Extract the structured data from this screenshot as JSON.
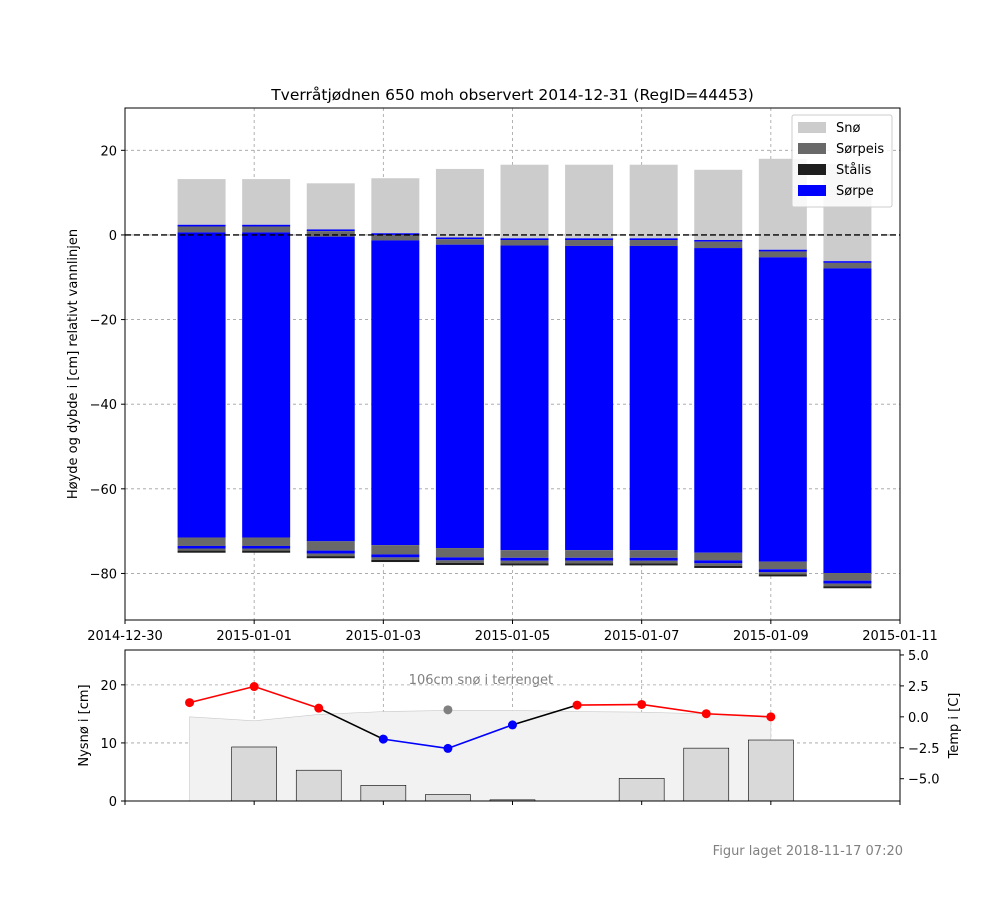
{
  "chart_data": [
    {
      "type": "bar",
      "subtype": "stacked-layers",
      "title": "Tverråtjødnen 650 moh observert 2014-12-31 (RegID=44453)",
      "ylabel": "Høyde og dybde i [cm] relativt vannlinjen",
      "xlim": [
        "2014-12-30",
        "2015-01-11"
      ],
      "ylim": [
        -91,
        30
      ],
      "xticks": [
        "2014-12-30",
        "2015-01-01",
        "2015-01-03",
        "2015-01-05",
        "2015-01-07",
        "2015-01-09",
        "2015-01-11"
      ],
      "yticks": [
        20,
        0,
        -20,
        -40,
        -60,
        -80
      ],
      "grid": true,
      "legend_placement": "top-right",
      "reference_line": {
        "y": 0,
        "style": "dashed",
        "color": "#000000"
      },
      "legend": [
        {
          "label": "Snø",
          "color": "#cccccc"
        },
        {
          "label": "Sørpeis",
          "color": "#696969"
        },
        {
          "label": "Stålis",
          "color": "#1e1e1e"
        },
        {
          "label": "Sørpe",
          "color": "#0000ff"
        }
      ],
      "columns": [
        {
          "date": "2014-12-31",
          "layers": [
            {
              "type": "Snø",
              "top": 13.2,
              "bottom": 2.4
            },
            {
              "type": "Sørpe",
              "top": 2.4,
              "bottom": 2.0
            },
            {
              "type": "Sørpeis",
              "top": 2.0,
              "bottom": 0.6
            },
            {
              "type": "Sørpe",
              "top": 0.6,
              "bottom": -71.5
            },
            {
              "type": "Sørpeis",
              "top": -71.5,
              "bottom": -73.5
            },
            {
              "type": "Sørpe",
              "top": -73.5,
              "bottom": -74.1
            },
            {
              "type": "Sørpeis",
              "top": -74.1,
              "bottom": -74.6
            },
            {
              "type": "Stålis",
              "top": -74.6,
              "bottom": -75.1
            }
          ]
        },
        {
          "date": "2015-01-01",
          "layers": [
            {
              "type": "Snø",
              "top": 13.2,
              "bottom": 2.4
            },
            {
              "type": "Sørpe",
              "top": 2.4,
              "bottom": 2.0
            },
            {
              "type": "Sørpeis",
              "top": 2.0,
              "bottom": 0.6
            },
            {
              "type": "Sørpe",
              "top": 0.6,
              "bottom": -71.5
            },
            {
              "type": "Sørpeis",
              "top": -71.5,
              "bottom": -73.5
            },
            {
              "type": "Sørpe",
              "top": -73.5,
              "bottom": -74.1
            },
            {
              "type": "Sørpeis",
              "top": -74.1,
              "bottom": -74.6
            },
            {
              "type": "Stålis",
              "top": -74.6,
              "bottom": -75.1
            }
          ]
        },
        {
          "date": "2015-01-02",
          "layers": [
            {
              "type": "Snø",
              "top": 12.2,
              "bottom": 1.3
            },
            {
              "type": "Sørpe",
              "top": 1.3,
              "bottom": 0.9
            },
            {
              "type": "Sørpeis",
              "top": 0.9,
              "bottom": -0.4
            },
            {
              "type": "Sørpe",
              "top": -0.4,
              "bottom": -72.4
            },
            {
              "type": "Sørpeis",
              "top": -72.4,
              "bottom": -74.6
            },
            {
              "type": "Sørpe",
              "top": -74.6,
              "bottom": -75.3
            },
            {
              "type": "Sørpeis",
              "top": -75.3,
              "bottom": -75.9
            },
            {
              "type": "Stålis",
              "top": -75.9,
              "bottom": -76.4
            }
          ]
        },
        {
          "date": "2015-01-03",
          "layers": [
            {
              "type": "Snø",
              "top": 13.4,
              "bottom": 0.4
            },
            {
              "type": "Sørpe",
              "top": 0.4,
              "bottom": 0.0
            },
            {
              "type": "Sørpeis",
              "top": 0.0,
              "bottom": -1.3
            },
            {
              "type": "Sørpe",
              "top": -1.3,
              "bottom": -73.3
            },
            {
              "type": "Sørpeis",
              "top": -73.3,
              "bottom": -75.5
            },
            {
              "type": "Sørpe",
              "top": -75.5,
              "bottom": -76.2
            },
            {
              "type": "Sørpeis",
              "top": -76.2,
              "bottom": -76.8
            },
            {
              "type": "Stålis",
              "top": -76.8,
              "bottom": -77.3
            }
          ]
        },
        {
          "date": "2015-01-04",
          "layers": [
            {
              "type": "Snø",
              "top": 15.6,
              "bottom": -0.6
            },
            {
              "type": "Sørpe",
              "top": -0.6,
              "bottom": -1.0
            },
            {
              "type": "Sørpeis",
              "top": -1.0,
              "bottom": -2.3
            },
            {
              "type": "Sørpe",
              "top": -2.3,
              "bottom": -74.0
            },
            {
              "type": "Sørpeis",
              "top": -74.0,
              "bottom": -76.2
            },
            {
              "type": "Sørpe",
              "top": -76.2,
              "bottom": -76.9
            },
            {
              "type": "Sørpeis",
              "top": -76.9,
              "bottom": -77.5
            },
            {
              "type": "Stålis",
              "top": -77.5,
              "bottom": -78.0
            }
          ]
        },
        {
          "date": "2015-01-05",
          "layers": [
            {
              "type": "Snø",
              "top": 16.6,
              "bottom": -0.8
            },
            {
              "type": "Sørpe",
              "top": -0.8,
              "bottom": -1.2
            },
            {
              "type": "Sørpeis",
              "top": -1.2,
              "bottom": -2.5
            },
            {
              "type": "Sørpe",
              "top": -2.5,
              "bottom": -74.5
            },
            {
              "type": "Sørpeis",
              "top": -74.5,
              "bottom": -76.3
            },
            {
              "type": "Sørpe",
              "top": -76.3,
              "bottom": -77.0
            },
            {
              "type": "Sørpeis",
              "top": -77.0,
              "bottom": -77.6
            },
            {
              "type": "Stålis",
              "top": -77.6,
              "bottom": -78.1
            }
          ]
        },
        {
          "date": "2015-01-06",
          "layers": [
            {
              "type": "Snø",
              "top": 16.6,
              "bottom": -0.8
            },
            {
              "type": "Sørpe",
              "top": -0.8,
              "bottom": -1.2
            },
            {
              "type": "Sørpeis",
              "top": -1.2,
              "bottom": -2.6
            },
            {
              "type": "Sørpe",
              "top": -2.6,
              "bottom": -74.5
            },
            {
              "type": "Sørpeis",
              "top": -74.5,
              "bottom": -76.3
            },
            {
              "type": "Sørpe",
              "top": -76.3,
              "bottom": -77.0
            },
            {
              "type": "Sørpeis",
              "top": -77.0,
              "bottom": -77.6
            },
            {
              "type": "Stålis",
              "top": -77.6,
              "bottom": -78.1
            }
          ]
        },
        {
          "date": "2015-01-07",
          "layers": [
            {
              "type": "Snø",
              "top": 16.6,
              "bottom": -0.8
            },
            {
              "type": "Sørpe",
              "top": -0.8,
              "bottom": -1.2
            },
            {
              "type": "Sørpeis",
              "top": -1.2,
              "bottom": -2.6
            },
            {
              "type": "Sørpe",
              "top": -2.6,
              "bottom": -74.5
            },
            {
              "type": "Sørpeis",
              "top": -74.5,
              "bottom": -76.3
            },
            {
              "type": "Sørpe",
              "top": -76.3,
              "bottom": -77.0
            },
            {
              "type": "Sørpeis",
              "top": -77.0,
              "bottom": -77.6
            },
            {
              "type": "Stålis",
              "top": -77.6,
              "bottom": -78.1
            }
          ]
        },
        {
          "date": "2015-01-08",
          "layers": [
            {
              "type": "Snø",
              "top": 15.4,
              "bottom": -1.2
            },
            {
              "type": "Sørpe",
              "top": -1.2,
              "bottom": -1.6
            },
            {
              "type": "Sørpeis",
              "top": -1.6,
              "bottom": -3.1
            },
            {
              "type": "Sørpe",
              "top": -3.1,
              "bottom": -75.1
            },
            {
              "type": "Sørpeis",
              "top": -75.1,
              "bottom": -76.9
            },
            {
              "type": "Sørpe",
              "top": -76.9,
              "bottom": -77.6
            },
            {
              "type": "Sørpeis",
              "top": -77.6,
              "bottom": -78.2
            },
            {
              "type": "Stålis",
              "top": -78.2,
              "bottom": -78.7
            }
          ]
        },
        {
          "date": "2015-01-09",
          "layers": [
            {
              "type": "Snø",
              "top": 18.0,
              "bottom": -3.5
            },
            {
              "type": "Sørpe",
              "top": -3.5,
              "bottom": -3.9
            },
            {
              "type": "Sørpeis",
              "top": -3.9,
              "bottom": -5.3
            },
            {
              "type": "Sørpe",
              "top": -5.3,
              "bottom": -77.2
            },
            {
              "type": "Sørpeis",
              "top": -77.2,
              "bottom": -79.0
            },
            {
              "type": "Sørpe",
              "top": -79.0,
              "bottom": -79.7
            },
            {
              "type": "Sørpeis",
              "top": -79.7,
              "bottom": -80.2
            },
            {
              "type": "Stålis",
              "top": -80.2,
              "bottom": -80.7
            }
          ]
        },
        {
          "date": "2015-01-10",
          "layers": [
            {
              "type": "Snø",
              "top": 16.8,
              "bottom": -6.2
            },
            {
              "type": "Sørpe",
              "top": -6.2,
              "bottom": -6.6
            },
            {
              "type": "Sørpeis",
              "top": -6.6,
              "bottom": -7.9
            },
            {
              "type": "Sørpe",
              "top": -7.9,
              "bottom": -79.9
            },
            {
              "type": "Sørpeis",
              "top": -79.9,
              "bottom": -81.7
            },
            {
              "type": "Sørpe",
              "top": -81.7,
              "bottom": -82.4
            },
            {
              "type": "Sørpeis",
              "top": -82.4,
              "bottom": -83.0
            },
            {
              "type": "Stålis",
              "top": -83.0,
              "bottom": -83.5
            }
          ]
        }
      ]
    },
    {
      "type": "bar+line",
      "ylabel": "Nysnø i [cm]",
      "ylabel_right": "Temp i [C]",
      "xlim": [
        "2014-12-30",
        "2015-01-11"
      ],
      "ylim": [
        0,
        26
      ],
      "yticks": [
        0,
        10,
        20
      ],
      "ylim_right": [
        -6.8,
        5.4
      ],
      "yticks_right": [
        "5.0",
        "2.5",
        "0.0",
        "−2.5",
        "−5.0"
      ],
      "grid": true,
      "annotation": "106cm snø i terrenget",
      "annotation_point": {
        "date": "2015-01-04",
        "value": 15.7,
        "color": "#808080"
      },
      "snow_depth_area": {
        "color": "#f2f2f2",
        "points": [
          {
            "date": "2014-12-31",
            "value": 14.5
          },
          {
            "date": "2015-01-01",
            "value": 13.8
          },
          {
            "date": "2015-01-02",
            "value": 14.9
          },
          {
            "date": "2015-01-03",
            "value": 15.4
          },
          {
            "date": "2015-01-04",
            "value": 15.6
          },
          {
            "date": "2015-01-05",
            "value": 15.6
          },
          {
            "date": "2015-01-06",
            "value": 15.4
          },
          {
            "date": "2015-01-07",
            "value": 15.3
          },
          {
            "date": "2015-01-08",
            "value": 15.0
          },
          {
            "date": "2015-01-09",
            "value": 14.4
          }
        ]
      },
      "new_snow": {
        "color": "#d9d9d9",
        "bars": [
          {
            "date": "2015-01-01",
            "value": 9.3
          },
          {
            "date": "2015-01-02",
            "value": 5.3
          },
          {
            "date": "2015-01-03",
            "value": 2.7
          },
          {
            "date": "2015-01-04",
            "value": 1.1
          },
          {
            "date": "2015-01-05",
            "value": 0.2
          },
          {
            "date": "2015-01-07",
            "value": 3.9
          },
          {
            "date": "2015-01-08",
            "value": 9.1
          },
          {
            "date": "2015-01-09",
            "value": 10.5
          }
        ]
      },
      "temperature": {
        "points": [
          {
            "date": "2014-12-31",
            "value": 1.15
          },
          {
            "date": "2015-01-01",
            "value": 2.45
          },
          {
            "date": "2015-01-02",
            "value": 0.7
          },
          {
            "date": "2015-01-03",
            "value": -1.8
          },
          {
            "date": "2015-01-04",
            "value": -2.55
          },
          {
            "date": "2015-01-05",
            "value": -0.65
          },
          {
            "date": "2015-01-06",
            "value": 0.95
          },
          {
            "date": "2015-01-07",
            "value": 1.0
          },
          {
            "date": "2015-01-08",
            "value": 0.25
          },
          {
            "date": "2015-01-09",
            "value": 0.0
          }
        ],
        "positive_color": "#ff0000",
        "negative_color": "#0000ff",
        "line_color": "#000000"
      }
    }
  ],
  "footer": {
    "text": "Figur laget 2018-11-17 07:20",
    "color": "#808080"
  }
}
